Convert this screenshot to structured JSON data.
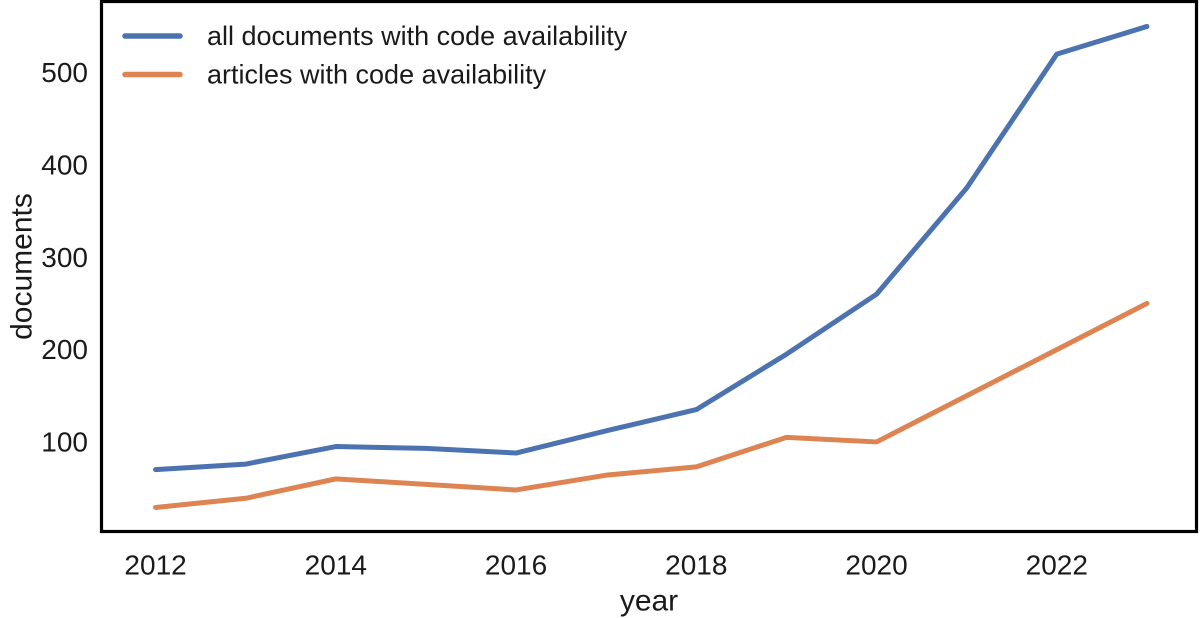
{
  "chart_data": {
    "type": "line",
    "title": "",
    "xlabel": "year",
    "ylabel": "documents",
    "x": [
      2012,
      2013,
      2014,
      2015,
      2016,
      2017,
      2018,
      2019,
      2020,
      2021,
      2022,
      2023
    ],
    "series": [
      {
        "name": "all documents with code availability",
        "color": "#4C72B0",
        "values": [
          70,
          76,
          95,
          93,
          88,
          112,
          135,
          195,
          260,
          375,
          520,
          550
        ]
      },
      {
        "name": "articles with code availability",
        "color": "#DD8452",
        "values": [
          29,
          39,
          60,
          54,
          48,
          64,
          73,
          105,
          100,
          150,
          200,
          250
        ]
      }
    ],
    "x_ticks": [
      2012,
      2014,
      2016,
      2018,
      2020,
      2022
    ],
    "y_ticks": [
      100,
      200,
      300,
      400,
      500
    ],
    "xlim": [
      2011.4,
      2023.55
    ],
    "ylim": [
      3,
      577
    ],
    "grid": false,
    "legend_position": "upper-left",
    "frame_color": "#000000",
    "text_color": "#1a1a1a",
    "background_color": "#ffffff"
  }
}
